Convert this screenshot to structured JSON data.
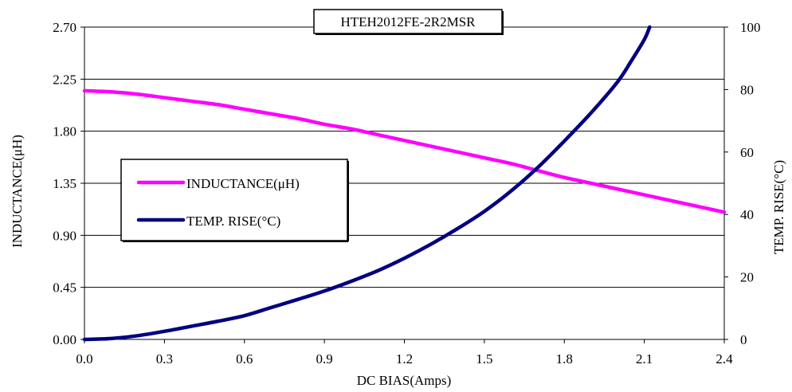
{
  "chart_data": {
    "type": "line",
    "title": "HTEH2012FE-2R2MSR",
    "xlabel": "DC BIAS(Amps)",
    "ylabel_left": "INDUCTANCE(μH)",
    "ylabel_right": "TEMP. RISE(°C)",
    "xlim": [
      0.0,
      2.4
    ],
    "ylim_left": [
      0.0,
      2.7
    ],
    "ylim_right": [
      0,
      100
    ],
    "x_ticks": [
      "0.0",
      "0.3",
      "0.6",
      "0.9",
      "1.2",
      "1.5",
      "1.8",
      "2.1",
      "2.4"
    ],
    "y_left_ticks": [
      "0.00",
      "0.45",
      "0.90",
      "1.35",
      "1.80",
      "2.25",
      "2.70"
    ],
    "y_right_ticks": [
      "0",
      "20",
      "40",
      "60",
      "80",
      "100"
    ],
    "grid": "horizontal",
    "legend_position": "left",
    "series": [
      {
        "name": "INDUCTANCE(μH)",
        "axis": "left",
        "color": "#ff00ff",
        "x": [
          0.0,
          0.1,
          0.2,
          0.3,
          0.4,
          0.5,
          0.6,
          0.7,
          0.8,
          0.9,
          1.0,
          1.1,
          1.2,
          1.3,
          1.4,
          1.5,
          1.6,
          1.7,
          1.8,
          1.9,
          2.0,
          2.1,
          2.2,
          2.3,
          2.4
        ],
        "values": [
          2.15,
          2.14,
          2.12,
          2.09,
          2.06,
          2.03,
          1.99,
          1.95,
          1.91,
          1.86,
          1.82,
          1.77,
          1.72,
          1.67,
          1.62,
          1.57,
          1.52,
          1.46,
          1.4,
          1.35,
          1.3,
          1.25,
          1.2,
          1.15,
          1.1
        ]
      },
      {
        "name": "TEMP. RISE(°C)",
        "axis": "right",
        "color": "#000080",
        "x": [
          0.0,
          0.1,
          0.2,
          0.3,
          0.4,
          0.5,
          0.6,
          0.7,
          0.8,
          0.9,
          1.0,
          1.1,
          1.2,
          1.3,
          1.4,
          1.5,
          1.6,
          1.7,
          1.8,
          1.9,
          2.0,
          2.05,
          2.1,
          2.12
        ],
        "values": [
          0,
          0.3,
          1.2,
          2.6,
          4.2,
          5.8,
          7.6,
          10.2,
          12.8,
          15.5,
          18.6,
          22.0,
          26.0,
          30.5,
          35.5,
          41.0,
          47.5,
          55.0,
          63.5,
          72.5,
          82.5,
          89.0,
          96.0,
          100
        ]
      }
    ]
  }
}
